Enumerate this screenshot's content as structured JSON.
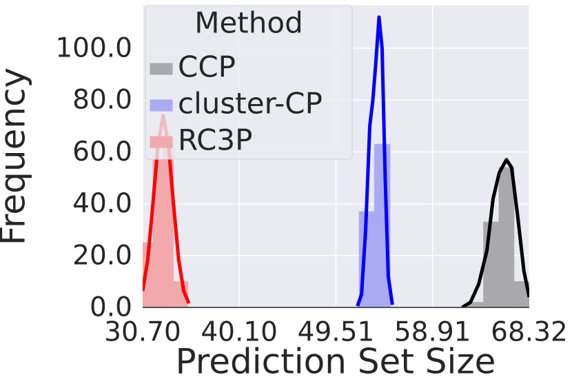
{
  "chart_data": {
    "type": "histogram-kde",
    "x_label": "Prediction Set Size",
    "y_label": "Frequency",
    "legend_title": "Method",
    "legend_position": "upper left",
    "grid": true,
    "xlim": [
      30.7,
      68.32
    ],
    "ylim": [
      0,
      116.5
    ],
    "xticks": [
      {
        "value": 30.7,
        "label": "30.70"
      },
      {
        "value": 40.1,
        "label": "40.10"
      },
      49.51,
      58.91,
      68.32
    ],
    "yticks": [
      {
        "value": 0,
        "label": "0.0"
      },
      {
        "value": 20,
        "label": "20.0"
      },
      {
        "value": 40,
        "label": "40.0"
      },
      {
        "value": 60,
        "label": "60.0"
      },
      {
        "value": 80,
        "label": "80.0"
      },
      {
        "value": 100,
        "label": "100.0"
      }
    ],
    "series": [
      {
        "name": "CCP",
        "color": "#000000",
        "bar_color": "#a9a9ab",
        "bins": [
          62.36,
          63.86,
          65.36,
          66.84,
          68.32
        ],
        "counts": [
          2,
          33,
          54,
          10
        ],
        "kde_x": [
          61.8,
          62.6,
          63.4,
          64.2,
          64.8,
          65.4,
          66.1,
          66.6,
          67.2,
          67.8,
          68.32
        ],
        "kde_y": [
          0,
          2,
          9,
          22,
          42,
          52,
          57,
          54,
          35,
          14,
          4
        ]
      },
      {
        "name": "cluster-CP",
        "color": "#0000ff",
        "bar_color": "#a9abf2",
        "bins": [
          51.76,
          53.24,
          54.78
        ],
        "counts": [
          37,
          63
        ],
        "kde_x": [
          51.6,
          52.0,
          52.4,
          52.8,
          53.1,
          53.4,
          53.7,
          54.0,
          54.3,
          54.6,
          55.0
        ],
        "kde_y": [
          0.5,
          5,
          30,
          70,
          80,
          95,
          112,
          100,
          50,
          12,
          1
        ]
      },
      {
        "name": "RC3P",
        "color": "#ff0000",
        "bar_color": "#f2a9ab",
        "bins": [
          30.7,
          31.7,
          32.7,
          33.7,
          35.1
        ],
        "counts": [
          25,
          57,
          63,
          10
        ],
        "kde_x": [
          30.7,
          31.2,
          31.7,
          32.2,
          32.7,
          33.2,
          33.7,
          34.2,
          34.7,
          35.2
        ],
        "kde_y": [
          6.3,
          18.5,
          40,
          63,
          74,
          63,
          40,
          18.5,
          6.3,
          1.6
        ]
      }
    ]
  }
}
